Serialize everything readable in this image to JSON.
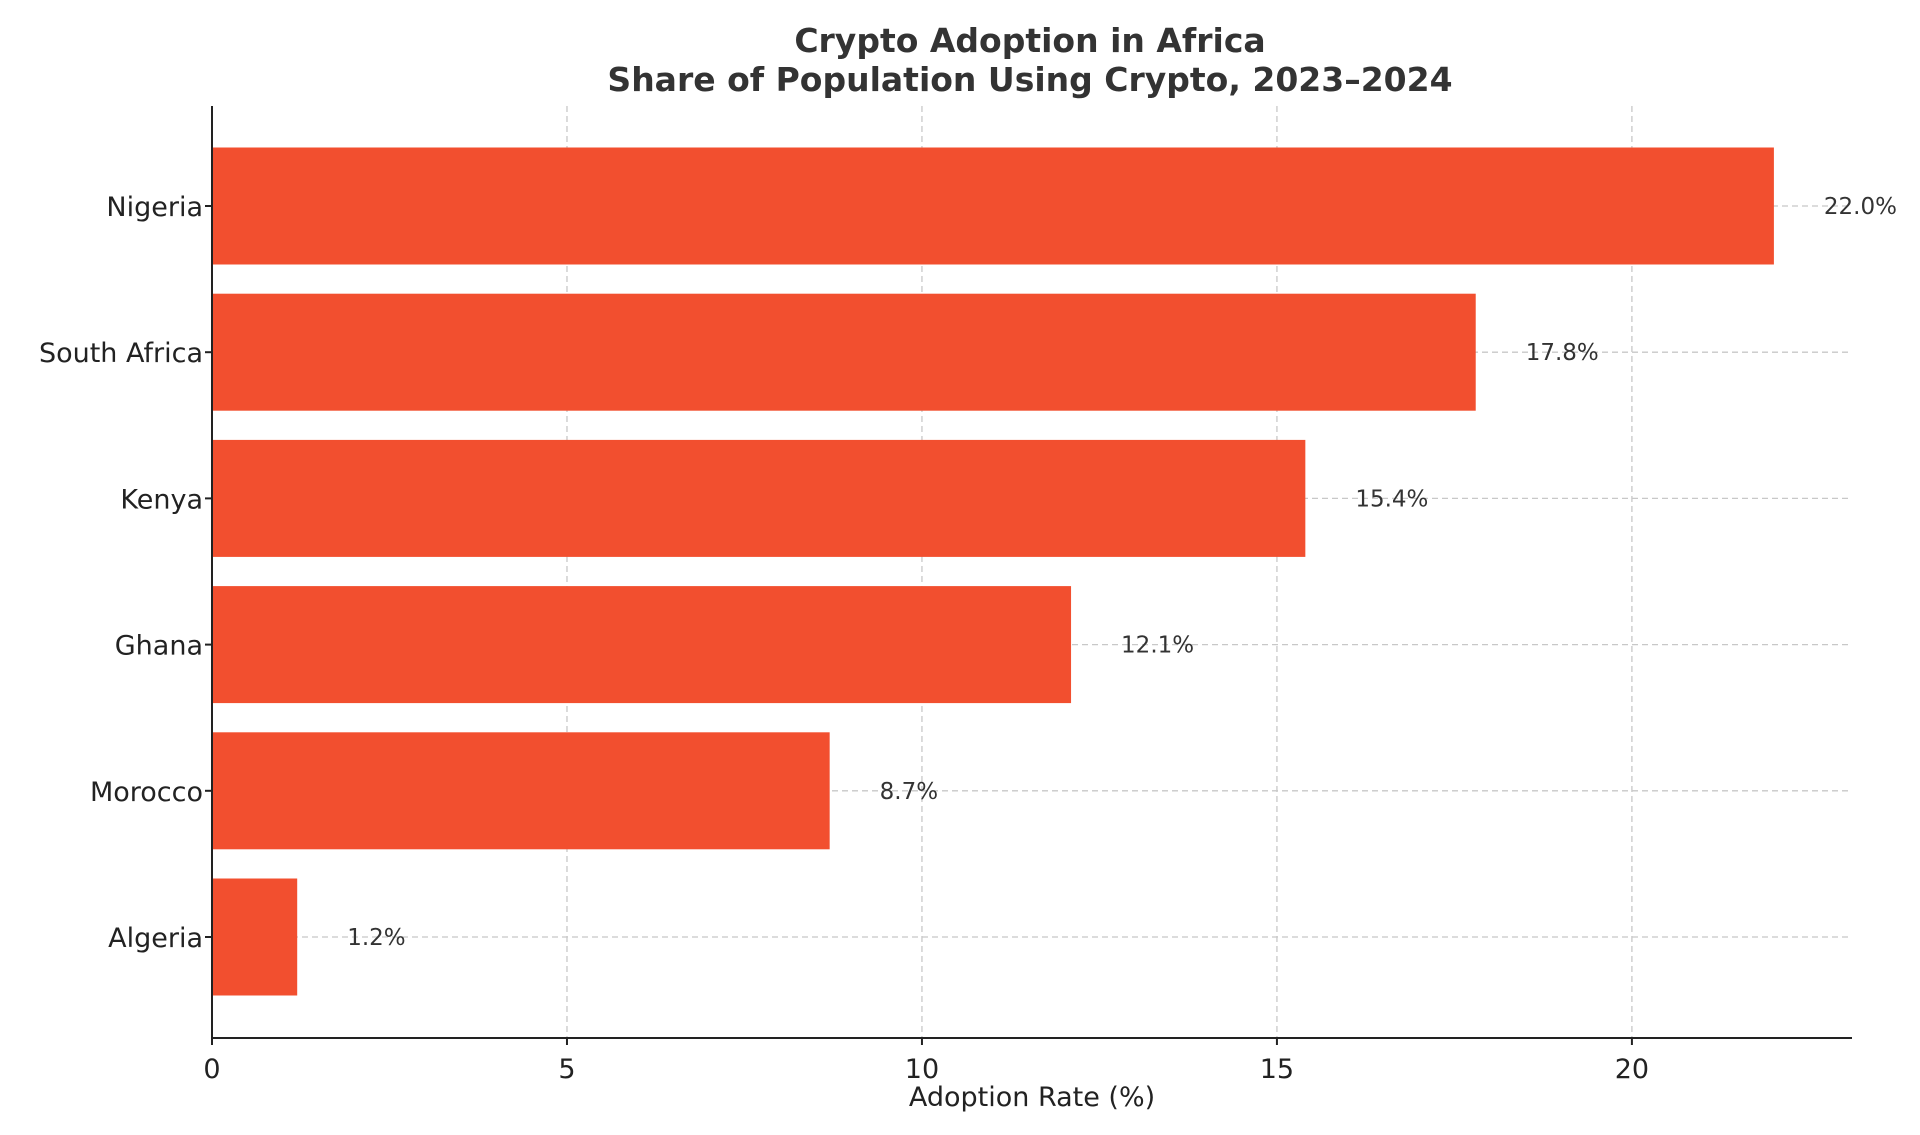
{
  "chart_data": {
    "type": "bar",
    "orientation": "horizontal",
    "title": "Crypto Adoption in Africa",
    "subtitle": "Share of Population Using Crypto, 2023–2024",
    "xlabel": "Adoption Rate (%)",
    "ylabel": "",
    "categories": [
      "Nigeria",
      "South Africa",
      "Kenya",
      "Ghana",
      "Morocco",
      "Algeria"
    ],
    "values": [
      22.0,
      17.8,
      15.4,
      12.1,
      8.7,
      1.2
    ],
    "data_labels": [
      "22.0%",
      "17.8%",
      "15.4%",
      "12.1%",
      "8.7%",
      "1.2%"
    ],
    "xlim": [
      0,
      23.1
    ],
    "xticks": [
      0,
      5,
      10,
      15,
      20
    ],
    "xtick_labels": [
      "0",
      "5",
      "10",
      "15",
      "20"
    ],
    "grid": true,
    "bar_color": "#f24f2f"
  }
}
